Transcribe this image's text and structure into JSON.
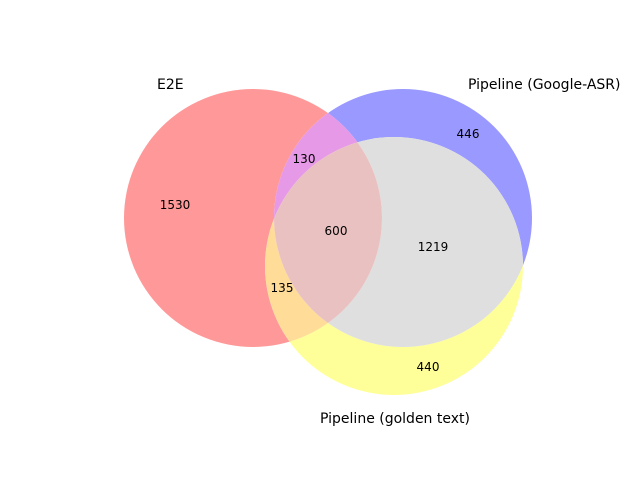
{
  "sets": [
    {
      "key": "e2e",
      "label": "E2E",
      "color": "#ff0000"
    },
    {
      "key": "google_asr",
      "label": "Pipeline (Google-ASR)",
      "color": "#0000ff"
    },
    {
      "key": "golden",
      "label": "Pipeline (golden text)",
      "color": "#ffff00"
    }
  ],
  "regions": {
    "e2e_only": "1530",
    "google_asr_only": "446",
    "golden_only": "440",
    "e2e_google_asr": "130",
    "e2e_golden": "135",
    "google_asr_golden": "1219",
    "all_three": "600"
  },
  "colors": {
    "e2e_only": "#ff9999",
    "google_asr_only": "#9999ff",
    "golden_only": "#ffff99",
    "e2e_google_asr": "#e699e6",
    "e2e_golden": "#ffdd99",
    "google_asr_golden": "#dfdfdf",
    "all_three": "#e9c1c1"
  }
}
